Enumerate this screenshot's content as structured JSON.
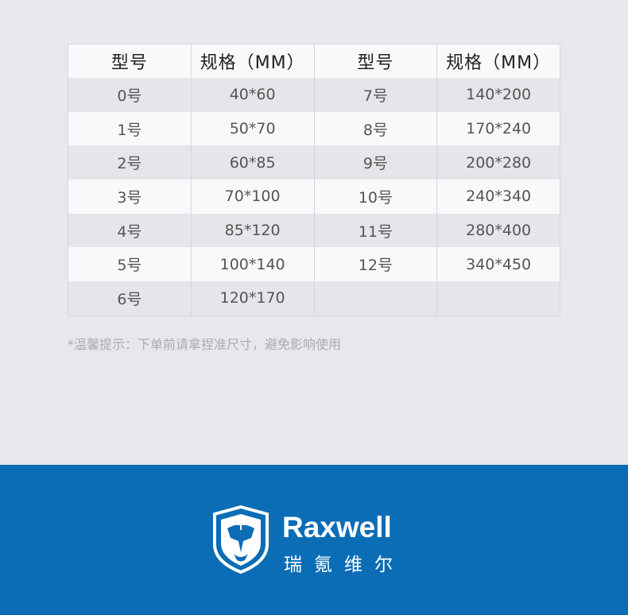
{
  "table": {
    "headers": [
      "型号",
      "规格（MM）",
      "型号",
      "规格（MM）"
    ],
    "rows": [
      [
        "0号",
        "40*60",
        "7号",
        "140*200"
      ],
      [
        "1号",
        "50*70",
        "8号",
        "170*240"
      ],
      [
        "2号",
        "60*85",
        "9号",
        "200*280"
      ],
      [
        "3号",
        "70*100",
        "10号",
        "240*340"
      ],
      [
        "4号",
        "85*120",
        "11号",
        "280*400"
      ],
      [
        "5号",
        "100*140",
        "12号",
        "340*450"
      ],
      [
        "6号",
        "120*170",
        "",
        ""
      ]
    ]
  },
  "note": "*温馨提示：下单前请拿捏准尺寸，避免影响使用",
  "footer": {
    "brand": "Raxwell",
    "brand_cn": "瑞氪维尔",
    "logo_icon": "tiger-shield-icon",
    "background_color": "#0b6db6"
  }
}
